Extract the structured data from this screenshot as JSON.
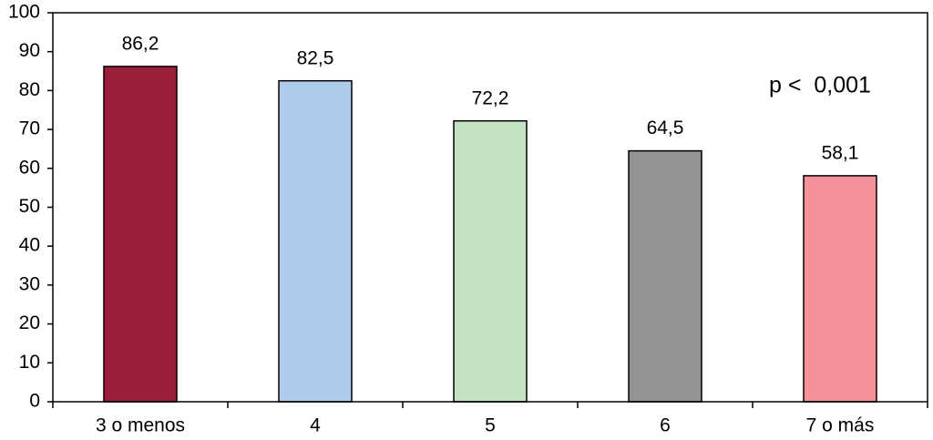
{
  "chart_data": {
    "type": "bar",
    "categories": [
      "3 o menos",
      "4",
      "5",
      "6",
      "7 o más"
    ],
    "values": [
      86.2,
      82.5,
      72.2,
      64.5,
      58.1
    ],
    "value_labels": [
      "86,2",
      "82,5",
      "72,2",
      "64,5",
      "58,1"
    ],
    "colors": [
      "#9b1f38",
      "#aecbeb",
      "#c5e3c4",
      "#939393",
      "#f4919a"
    ],
    "ylim": [
      0,
      100
    ],
    "yticks": [
      0,
      10,
      20,
      30,
      40,
      50,
      60,
      70,
      80,
      90,
      100
    ],
    "annotation": "p <  0,001",
    "grid": false
  }
}
